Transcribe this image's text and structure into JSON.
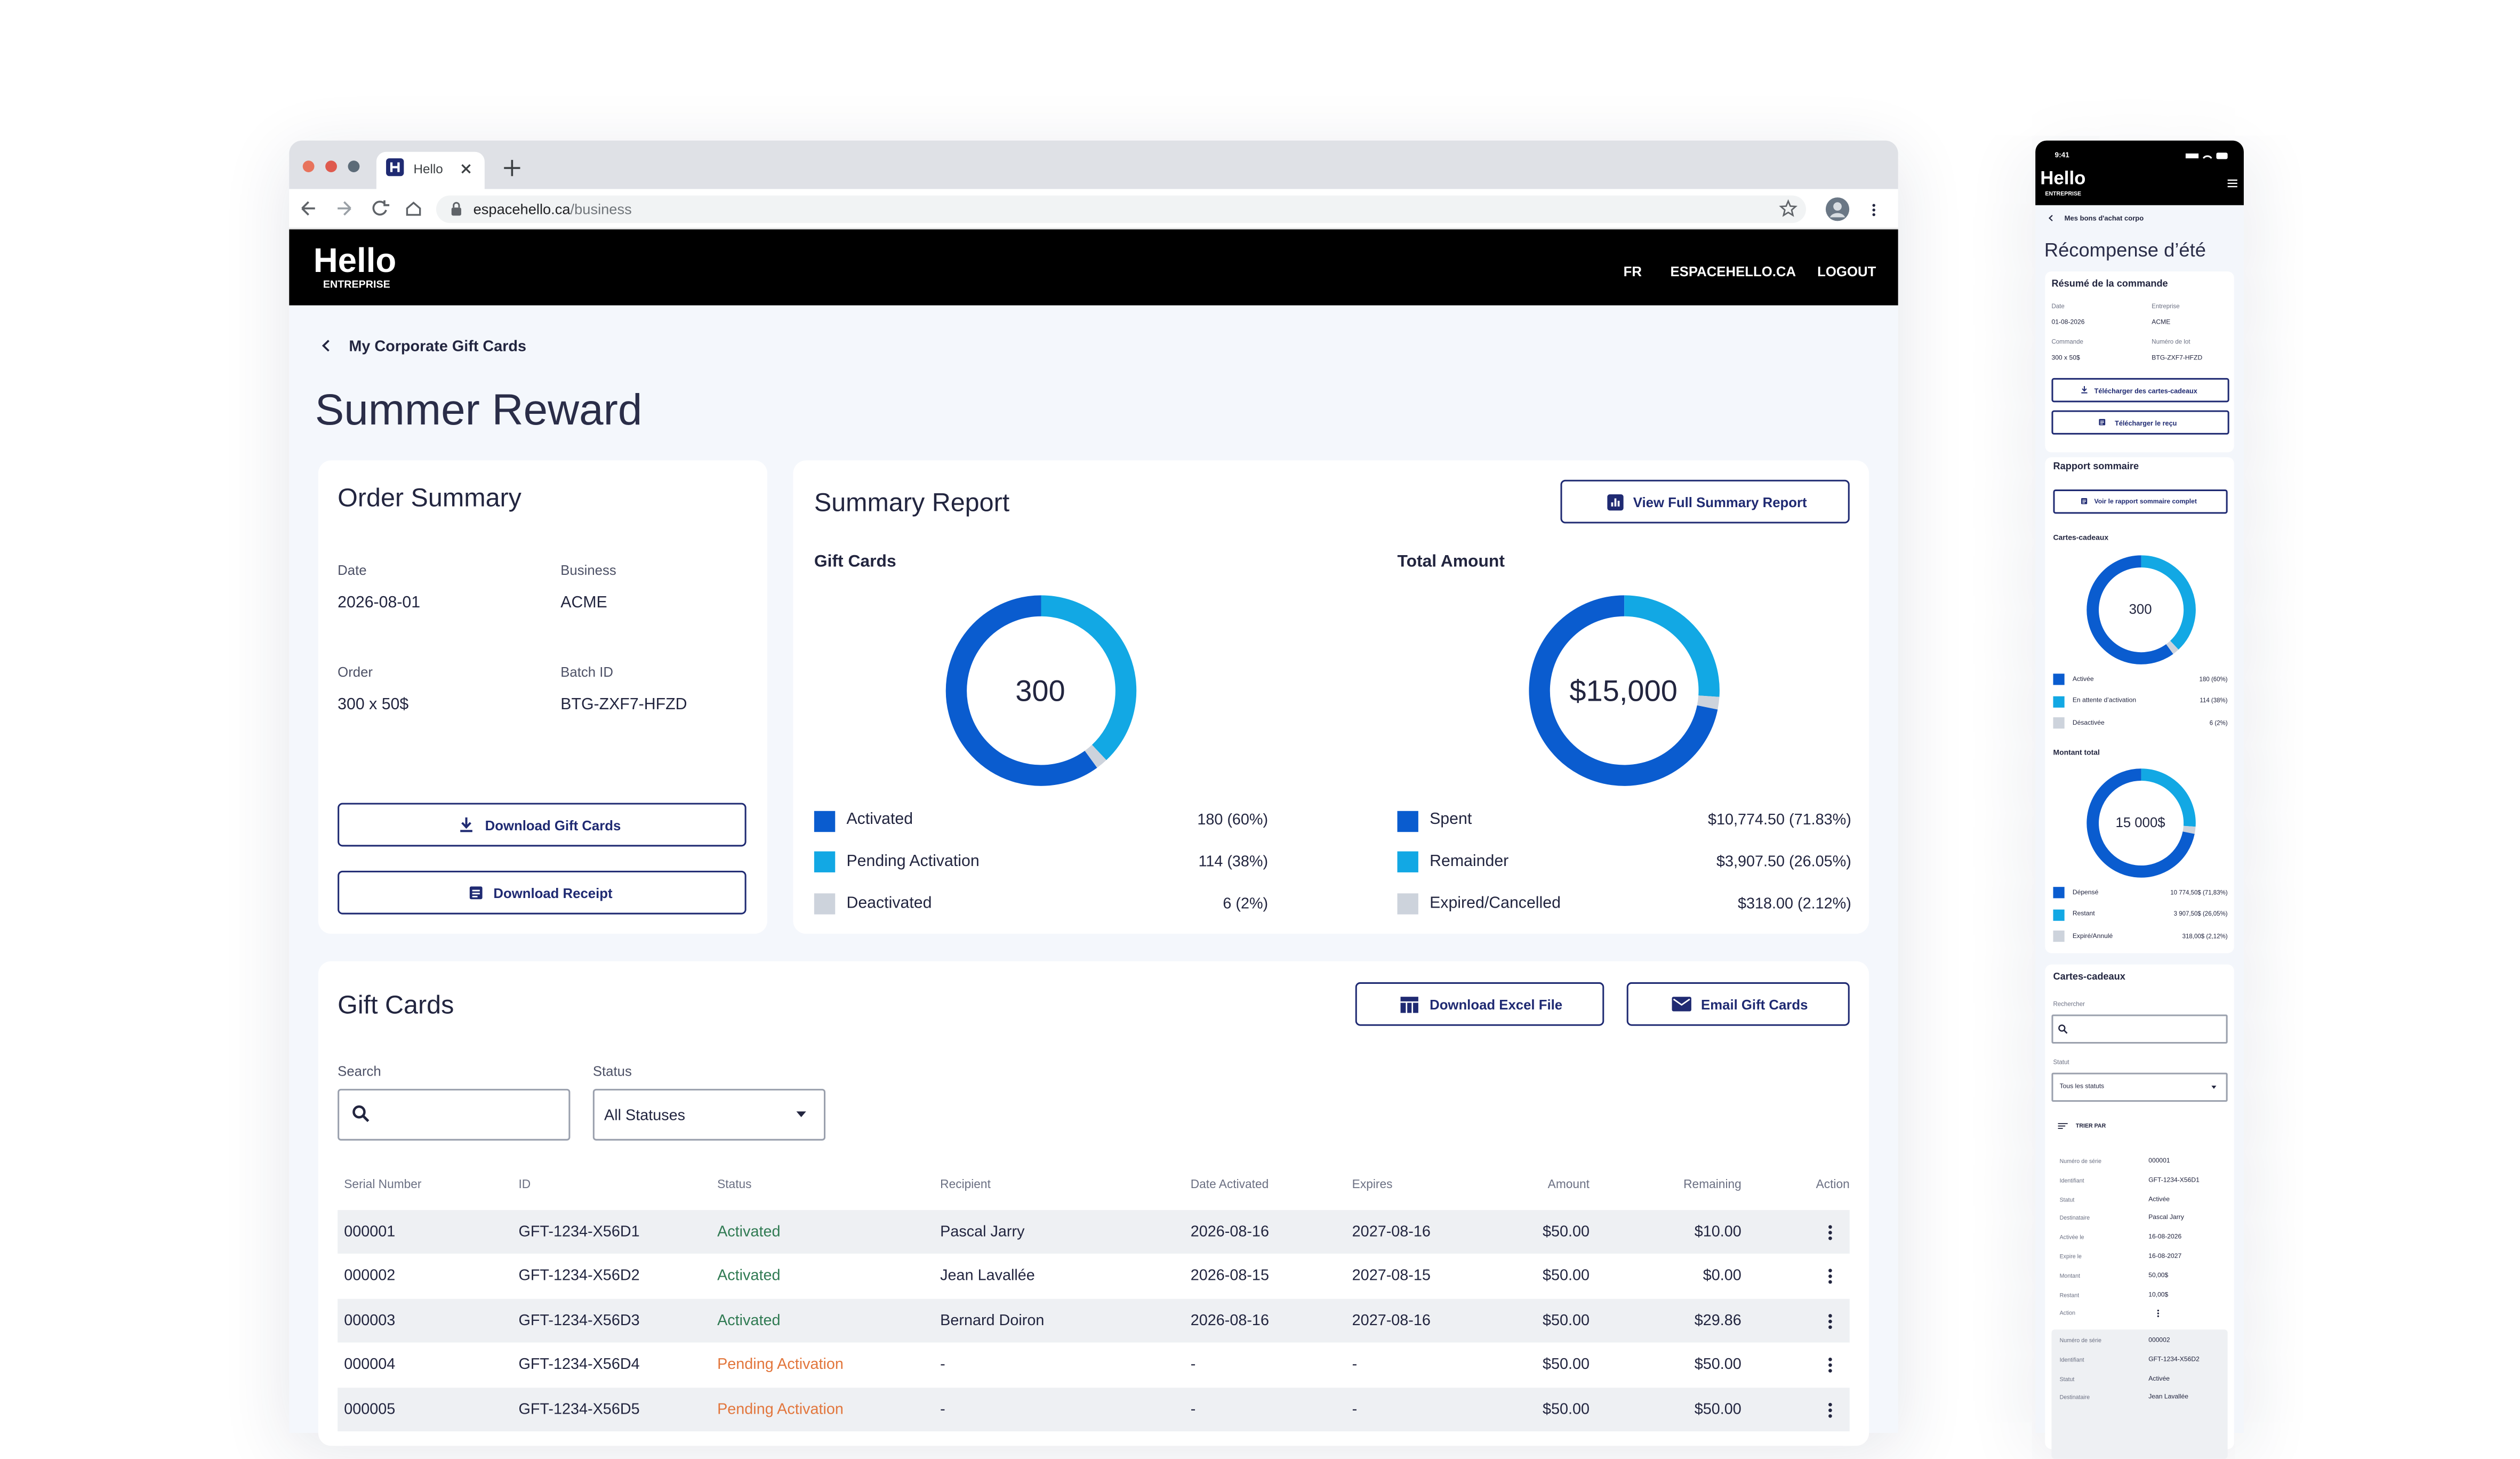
{
  "browser": {
    "tab_title": "Hello",
    "url_host": "espacehello.ca",
    "url_path": "/business"
  },
  "header": {
    "logo": "Hello",
    "logo_sub": "ENTREPRISE",
    "nav": [
      "FR",
      "ESPACEHELLO.CA",
      "LOGOUT"
    ]
  },
  "breadcrumb": "My Corporate Gift Cards",
  "title": "Summer Reward",
  "order_summary": {
    "title": "Order Summary",
    "fields": [
      {
        "label": "Date",
        "value": "2026-08-01"
      },
      {
        "label": "Business",
        "value": "ACME"
      },
      {
        "label": "Order",
        "value": "300 x 50$"
      },
      {
        "label": "Batch ID",
        "value": "BTG-ZXF7-HFZD"
      }
    ],
    "buttons": [
      "Download Gift Cards",
      "Download Receipt"
    ]
  },
  "summary_report": {
    "title": "Summary Report",
    "button": "View Full Summary Report",
    "charts": [
      {
        "type": "donut",
        "title": "Gift Cards",
        "center": "300",
        "categories": [
          "Activated",
          "Pending Activation",
          "Deactivated"
        ],
        "values": [
          180,
          114,
          6
        ],
        "value_labels": [
          "180 (60%)",
          "114 (38%)",
          "6 (2%)"
        ],
        "colors": [
          "#0a5ccf",
          "#12a8e4",
          "#cdd3dc"
        ]
      },
      {
        "type": "donut",
        "title": "Total Amount",
        "center": "$15,000",
        "categories": [
          "Spent",
          "Remainder",
          "Expired/Cancelled"
        ],
        "values": [
          10774.5,
          3907.5,
          318
        ],
        "value_labels": [
          "$10,774.50 (71.83%)",
          "$3,907.50 (26.05%)",
          "$318.00 (2.12%)"
        ],
        "colors": [
          "#0a5ccf",
          "#12a8e4",
          "#cdd3dc"
        ]
      }
    ]
  },
  "gift_cards": {
    "title": "Gift Cards",
    "buttons": [
      "Download Excel File",
      "Email Gift Cards"
    ],
    "search_label": "Search",
    "status_label": "Status",
    "status_value": "All Statuses",
    "columns": [
      "Serial Number",
      "ID",
      "Status",
      "Recipient",
      "Date Activated",
      "Expires",
      "Amount",
      "Remaining",
      "Action"
    ],
    "status_colors": {
      "Activated": "#2f7a52",
      "Pending Activation": "#e2763c"
    },
    "rows": [
      [
        "000001",
        "GFT-1234-X56D1",
        "Activated",
        "Pascal Jarry",
        "2026-08-16",
        "2027-08-16",
        "$50.00",
        "$10.00"
      ],
      [
        "000002",
        "GFT-1234-X56D2",
        "Activated",
        "Jean Lavallée",
        "2026-08-15",
        "2027-08-15",
        "$50.00",
        "$0.00"
      ],
      [
        "000003",
        "GFT-1234-X56D3",
        "Activated",
        "Bernard Doiron",
        "2026-08-16",
        "2027-08-16",
        "$50.00",
        "$29.86"
      ],
      [
        "000004",
        "GFT-1234-X56D4",
        "Pending Activation",
        "-",
        "-",
        "-",
        "$50.00",
        "$50.00"
      ],
      [
        "000005",
        "GFT-1234-X56D5",
        "Pending Activation",
        "-",
        "-",
        "-",
        "$50.00",
        "$50.00"
      ]
    ]
  },
  "mobile": {
    "time": "9:41",
    "logo": "Hello",
    "logo_sub": "ENTREPRISE",
    "breadcrumb": "Mes bons d'achat corpo",
    "title": "Récompense d’été",
    "order_title": "Résumé de la commande",
    "fields": [
      {
        "label": "Date",
        "value": "01-08-2026"
      },
      {
        "label": "Entreprise",
        "value": "ACME"
      },
      {
        "label": "Commande",
        "value": "300 x 50$"
      },
      {
        "label": "Numéro de lot",
        "value": "BTG-ZXF7-HFZD"
      }
    ],
    "buttons": [
      "Télécharger des cartes-cadeaux",
      "Télécharger le reçu"
    ],
    "report_title": "Rapport sommaire",
    "report_button": "Voir le rapport sommaire complet",
    "charts": [
      {
        "type": "donut",
        "title": "Cartes-cadeaux",
        "center": "300",
        "categories": [
          "Activée",
          "En attente d’activation",
          "Désactivée"
        ],
        "values": [
          180,
          114,
          6
        ],
        "value_labels": [
          "180 (60%)",
          "114 (38%)",
          "6 (2%)"
        ],
        "colors": [
          "#0a5ccf",
          "#12a8e4",
          "#cdd3dc"
        ]
      },
      {
        "type": "donut",
        "title": "Montant total",
        "center": "15 000$",
        "categories": [
          "Dépensé",
          "Restant",
          "Expiré/Annulé"
        ],
        "values": [
          10774.5,
          3907.5,
          318
        ],
        "value_labels": [
          "10 774,50$ (71,83%)",
          "3 907,50$ (26,05%)",
          "318,00$ (2,12%)"
        ],
        "colors": [
          "#0a5ccf",
          "#12a8e4",
          "#cdd3dc"
        ]
      }
    ],
    "cards_title": "Cartes-cadeaux",
    "search_label": "Rechercher",
    "status_label": "Statut",
    "status_value": "Tous les statuts",
    "sort_label": "TRIER PAR",
    "card_fields": [
      "Numéro de série",
      "Identifiant",
      "Statut",
      "Destinataire",
      "Activée le",
      "Expire le",
      "Montant",
      "Restant",
      "Action"
    ],
    "cards": [
      [
        "000001",
        "GFT-1234-X56D1",
        "Activée",
        "Pascal Jarry",
        "16-08-2026",
        "16-08-2027",
        "50,00$",
        "10,00$"
      ],
      [
        "000002",
        "GFT-1234-X56D2",
        "Activée",
        "Jean Lavallée"
      ]
    ]
  }
}
